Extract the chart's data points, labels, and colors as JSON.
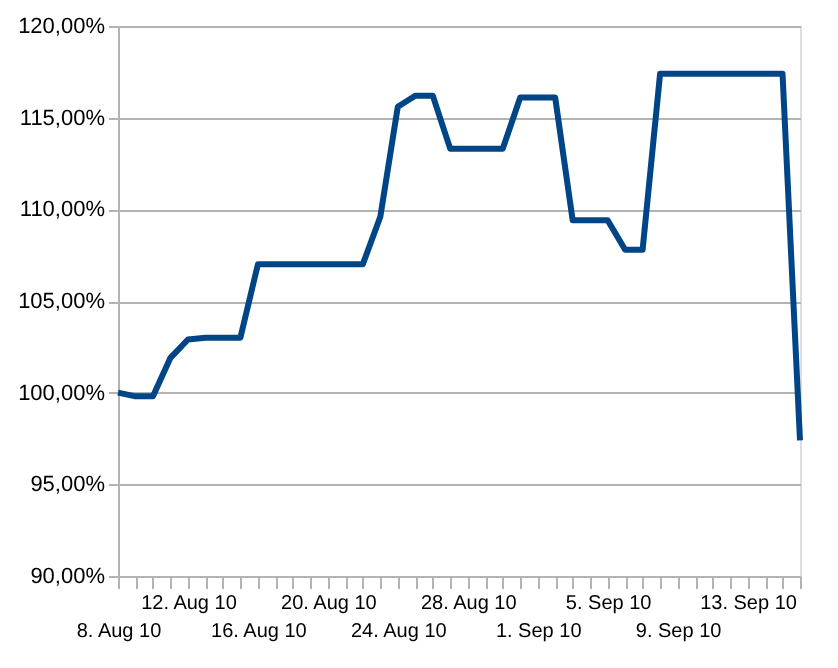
{
  "chart_data": {
    "type": "line",
    "categories": [
      "8. Aug 10",
      null,
      null,
      null,
      "12. Aug 10",
      null,
      null,
      null,
      "16. Aug 10",
      null,
      null,
      null,
      "20. Aug 10",
      null,
      null,
      null,
      "24. Aug 10",
      null,
      null,
      null,
      "28. Aug 10",
      null,
      null,
      null,
      "1. Sep 10",
      null,
      null,
      null,
      "5. Sep 10",
      null,
      null,
      null,
      "9. Sep 10",
      null,
      null,
      null,
      "13. Sep 10",
      null,
      null,
      null
    ],
    "series": [
      {
        "color": "#004586",
        "values": [
          100.0,
          99.8,
          99.8,
          101.9,
          102.9,
          103.0,
          103.0,
          103.0,
          107.0,
          107.0,
          107.0,
          107.0,
          107.0,
          107.0,
          107.0,
          109.6,
          115.6,
          116.2,
          116.2,
          113.3,
          113.3,
          113.3,
          113.3,
          116.1,
          116.1,
          116.1,
          109.4,
          109.4,
          109.4,
          107.8,
          107.8,
          117.4,
          117.4,
          117.4,
          117.4,
          117.4,
          117.4,
          117.4,
          117.4,
          97.4
        ]
      }
    ],
    "ylim": [
      90,
      120
    ],
    "yticks": [
      {
        "value": 90,
        "label": "90,00%"
      },
      {
        "value": 95,
        "label": "95,00%"
      },
      {
        "value": 100,
        "label": "100,00%"
      },
      {
        "value": 105,
        "label": "105,00%"
      },
      {
        "value": 110,
        "label": "110,00%"
      },
      {
        "value": 115,
        "label": "115,00%"
      },
      {
        "value": 120,
        "label": "120,00%"
      }
    ],
    "grid": "y",
    "marker": "none",
    "line_style": "solid"
  }
}
